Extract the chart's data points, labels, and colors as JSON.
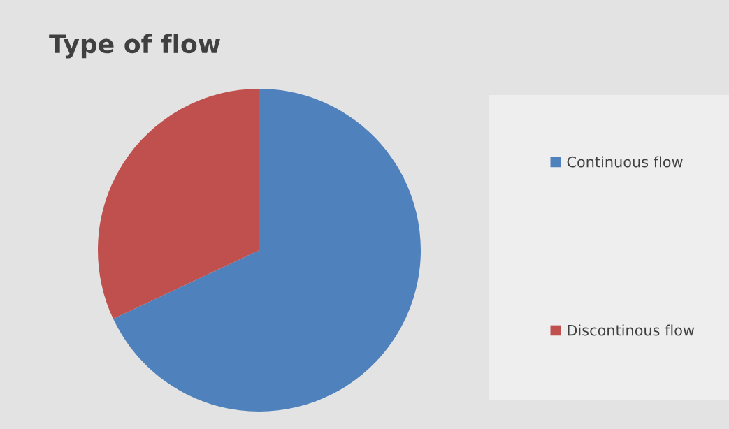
{
  "chart_data": {
    "type": "pie",
    "title": "Type of flow",
    "categories": [
      "Continuous flow",
      "Discontinous flow"
    ],
    "values": [
      68,
      32
    ],
    "colors": [
      "#4f81bd",
      "#c0504d"
    ],
    "legend": "right"
  }
}
